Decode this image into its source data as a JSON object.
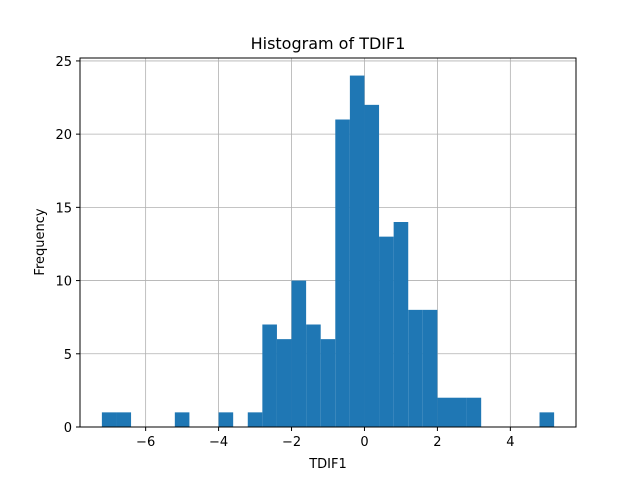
{
  "chart_data": {
    "type": "bar",
    "title": "Histogram of TDIF1",
    "xlabel": "TDIF1",
    "ylabel": "Frequency",
    "xlim": [
      -7.8,
      5.8
    ],
    "ylim": [
      0,
      25.2
    ],
    "xticks": [
      -6,
      -4,
      -2,
      0,
      2,
      4
    ],
    "xtick_labels": [
      "−6",
      "−4",
      "−2",
      "0",
      "2",
      "4"
    ],
    "yticks": [
      0,
      5,
      10,
      15,
      20,
      25
    ],
    "ytick_labels": [
      "0",
      "5",
      "10",
      "15",
      "20",
      "25"
    ],
    "grid": true,
    "bar_color": "#1f77b4",
    "bin_edges": [
      -7.2,
      -6.8,
      -6.4,
      -6.0,
      -5.6,
      -5.2,
      -4.8,
      -4.4,
      -4.0,
      -3.6,
      -3.2,
      -2.8,
      -2.4,
      -2.0,
      -1.6,
      -1.2,
      -0.8,
      -0.4,
      0.0,
      0.4,
      0.8,
      1.2,
      1.6,
      2.0,
      2.4,
      2.8,
      3.2,
      3.6,
      4.0,
      4.4,
      4.8,
      5.2
    ],
    "counts": [
      1,
      1,
      0,
      0,
      0,
      1,
      0,
      0,
      1,
      0,
      1,
      7,
      6,
      10,
      7,
      6,
      21,
      24,
      22,
      13,
      14,
      8,
      8,
      2,
      2,
      2,
      0,
      0,
      0,
      0,
      1
    ]
  }
}
